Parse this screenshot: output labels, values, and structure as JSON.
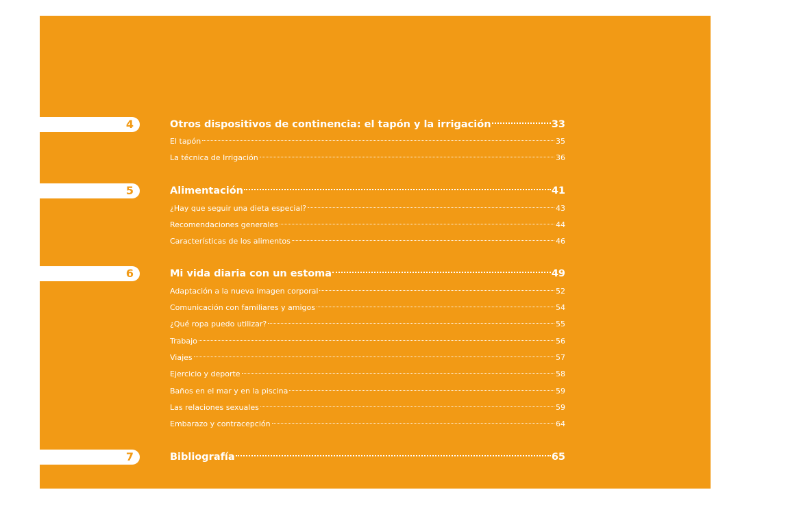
{
  "toc": {
    "chapters": [
      {
        "number": "4",
        "title": "Otros dispositivos de continencia: el tapón y la irrigación",
        "page": "33",
        "sections": [
          {
            "title": "El tapón",
            "page": "35"
          },
          {
            "title": "La técnica de Irrigación",
            "page": "36"
          }
        ]
      },
      {
        "number": "5",
        "title": "Alimentación",
        "page": "41",
        "sections": [
          {
            "title": "¿Hay que seguir una dieta especial?",
            "page": "43"
          },
          {
            "title": "Recomendaciones generales",
            "page": "44"
          },
          {
            "title": "Características de los alimentos",
            "page": "46"
          }
        ]
      },
      {
        "number": "6",
        "title": "Mi vida diaria con un estoma",
        "page": "49",
        "sections": [
          {
            "title": "Adaptación a la nueva imagen corporal",
            "page": "52"
          },
          {
            "title": "Comunicación con familiares y amigos",
            "page": "54"
          },
          {
            "title": "¿Qué ropa puedo utilizar?",
            "page": "55"
          },
          {
            "title": "Trabajo",
            "page": "56"
          },
          {
            "title": "Viajes",
            "page": "57"
          },
          {
            "title": "Ejercicio y deporte",
            "page": "58"
          },
          {
            "title": "Baños en el mar y en la piscina",
            "page": "59"
          },
          {
            "title": "Las relaciones sexuales",
            "page": "59"
          },
          {
            "title": "Embarazo y contracepción",
            "page": "64"
          }
        ]
      },
      {
        "number": "7",
        "title": "Bibliografía",
        "page": "65",
        "sections": []
      }
    ]
  },
  "colors": {
    "page_background": "#f29a15",
    "text": "#ffffff",
    "tab": "#ffffff"
  }
}
